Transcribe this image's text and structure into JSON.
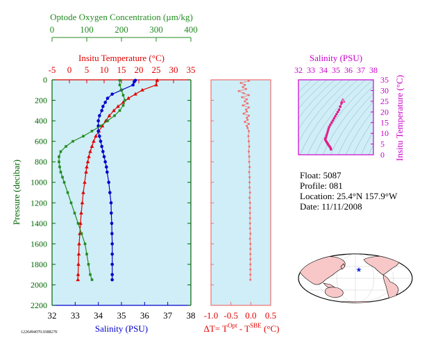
{
  "colors": {
    "temperature": "#e00000",
    "salinity": "#0000cc",
    "oxygen": "#228b22",
    "delta": "#f07070",
    "ts": "#e0208c",
    "plot_bg": "#cfeef7",
    "pressure_axis": "#006400",
    "ts_axis": "#cc00cc"
  },
  "chart_data": [
    {
      "type": "scatter",
      "name": "profile",
      "ylabel": "Pressure (decibar)",
      "ylim": [
        2200,
        0
      ],
      "y_ticks": [
        "0",
        "200",
        "400",
        "600",
        "800",
        "1000",
        "1200",
        "1400",
        "1600",
        "1800",
        "2000",
        "2200"
      ],
      "axes": {
        "oxygen": {
          "label": "Optode Oxygen Concentration (µm/kg)",
          "range": [
            0,
            400
          ],
          "ticks": [
            "0",
            "100",
            "200",
            "300",
            "400"
          ]
        },
        "temperature": {
          "label": "Insitu Temperature (°C)",
          "range": [
            -5,
            35
          ],
          "ticks": [
            "-5",
            "0",
            "5",
            "10",
            "15",
            "20",
            "25",
            "30",
            "35"
          ]
        },
        "salinity": {
          "label": "Salinity (PSU)",
          "range": [
            32,
            38
          ],
          "ticks": [
            "32",
            "33",
            "34",
            "35",
            "36",
            "37",
            "38"
          ]
        }
      },
      "series": [
        {
          "key": "temperature",
          "marker": "triangle",
          "pressure": [
            5,
            50,
            100,
            140,
            180,
            220,
            260,
            300,
            350,
            400,
            450,
            500,
            550,
            600,
            650,
            700,
            750,
            800,
            850,
            900,
            1000,
            1100,
            1200,
            1300,
            1400,
            1500,
            1600,
            1700,
            1800,
            1900,
            1950
          ],
          "values": [
            25.3,
            25.0,
            21.0,
            19.0,
            17.0,
            15.5,
            14.0,
            12.8,
            11.5,
            10.5,
            9.5,
            8.5,
            7.6,
            7.0,
            6.5,
            6.0,
            5.6,
            5.3,
            5.0,
            4.8,
            4.4,
            4.0,
            3.7,
            3.4,
            3.2,
            3.0,
            2.8,
            2.7,
            2.6,
            2.5,
            2.45
          ]
        },
        {
          "key": "salinity",
          "marker": "circle",
          "pressure": [
            5,
            20,
            50,
            100,
            140,
            180,
            220,
            260,
            300,
            350,
            400,
            450,
            500,
            550,
            600,
            650,
            700,
            750,
            800,
            850,
            900,
            1000,
            1100,
            1200,
            1300,
            1400,
            1500,
            1600,
            1700,
            1800,
            1900,
            1950
          ],
          "values": [
            35.6,
            35.55,
            35.5,
            35.0,
            34.6,
            34.4,
            34.3,
            34.2,
            34.15,
            34.05,
            34.0,
            34.0,
            34.0,
            34.05,
            34.1,
            34.15,
            34.2,
            34.25,
            34.3,
            34.35,
            34.38,
            34.45,
            34.5,
            34.55,
            34.56,
            34.58,
            34.59,
            34.6,
            34.6,
            34.6,
            34.6,
            34.6
          ]
        },
        {
          "key": "oxygen",
          "marker": "square",
          "pressure": [
            5,
            50,
            100,
            150,
            200,
            250,
            300,
            350,
            400,
            450,
            500,
            550,
            600,
            650,
            700,
            750,
            800,
            850,
            900,
            950,
            1000,
            1100,
            1200,
            1300,
            1400,
            1500,
            1600,
            1700,
            1800,
            1900,
            1950
          ],
          "values": [
            195,
            195,
            200,
            205,
            210,
            205,
            195,
            180,
            160,
            140,
            115,
            90,
            60,
            40,
            25,
            20,
            20,
            22,
            25,
            30,
            35,
            45,
            55,
            65,
            75,
            85,
            95,
            100,
            105,
            110,
            115
          ]
        }
      ]
    },
    {
      "type": "scatter",
      "name": "delta_t",
      "xlabel_main": "ΔT= T",
      "xlabel_sup1": "Opt",
      "xlabel_mid": " - T",
      "xlabel_sup2": "SBE",
      "xlabel_end": " (°C)",
      "xlim": [
        -1.0,
        0.5
      ],
      "x_ticks": [
        "-1.0",
        "-0.5",
        "0.0",
        "0.5"
      ],
      "ylim": [
        2200,
        0
      ],
      "pressure": [
        10,
        30,
        50,
        70,
        90,
        110,
        130,
        150,
        170,
        190,
        210,
        230,
        250,
        270,
        290,
        310,
        330,
        350,
        370,
        390,
        410,
        430,
        450,
        470,
        500,
        550,
        600,
        650,
        700,
        750,
        800,
        850,
        900,
        950,
        1000,
        1050,
        1100,
        1150,
        1200,
        1250,
        1300,
        1350,
        1400,
        1450,
        1500,
        1550,
        1600,
        1650,
        1700,
        1750,
        1800,
        1850,
        1900,
        1950
      ],
      "values": [
        -0.05,
        -0.25,
        -0.15,
        -0.2,
        -0.12,
        -0.3,
        -0.18,
        -0.05,
        -0.22,
        -0.1,
        -0.15,
        -0.08,
        -0.2,
        -0.05,
        -0.12,
        -0.1,
        -0.18,
        -0.05,
        -0.1,
        -0.08,
        -0.15,
        -0.05,
        -0.1,
        -0.08,
        -0.05,
        -0.06,
        -0.05,
        -0.04,
        -0.05,
        -0.04,
        -0.04,
        -0.03,
        -0.04,
        -0.03,
        -0.03,
        -0.03,
        -0.02,
        -0.03,
        -0.02,
        -0.02,
        -0.02,
        -0.02,
        -0.02,
        -0.02,
        -0.01,
        -0.02,
        -0.01,
        -0.01,
        -0.01,
        -0.01,
        -0.01,
        -0.01,
        -0.01,
        -0.01
      ]
    },
    {
      "type": "scatter",
      "name": "ts_diagram",
      "xlabel": "Salinity (PSU)",
      "ylabel": "Insitu Temperature (°C)",
      "xlim": [
        32,
        38
      ],
      "ylim": [
        0,
        35
      ],
      "x_ticks": [
        "32",
        "33",
        "34",
        "35",
        "36",
        "37",
        "38"
      ],
      "y_ticks": [
        "0",
        "5",
        "10",
        "15",
        "20",
        "25",
        "30",
        "35"
      ],
      "salinity": [
        35.55,
        35.45,
        35.35,
        35.25,
        35.15,
        35.05,
        34.95,
        34.85,
        34.75,
        34.65,
        34.55,
        34.45,
        34.4,
        34.35,
        34.3,
        34.25,
        34.2,
        34.15,
        34.15,
        34.2,
        34.25,
        34.3,
        34.35,
        34.4,
        34.45,
        34.5,
        34.55,
        34.58,
        34.6,
        34.6
      ],
      "temperature": [
        25.2,
        24.0,
        22.5,
        21.0,
        20.0,
        19.0,
        18.0,
        17.0,
        16.0,
        15.0,
        14.0,
        13.0,
        12.0,
        11.0,
        10.0,
        9.0,
        8.0,
        7.5,
        7.0,
        6.5,
        6.0,
        5.5,
        5.0,
        4.6,
        4.2,
        3.8,
        3.4,
        3.0,
        2.7,
        2.5
      ]
    }
  ],
  "float_info": {
    "float": "Float:  5087",
    "profile": "Profile:  081",
    "location": "Location:  25.4°N  157.9°W",
    "date": "Date:  11/11/2008"
  },
  "footer_code": "1226494070.0388276",
  "map": {
    "marker_icon": "star-icon"
  }
}
